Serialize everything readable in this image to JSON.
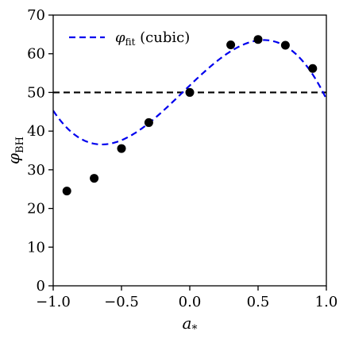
{
  "chart_data": {
    "type": "scatter",
    "xlabel": "a",
    "xlabel_subscript": "*",
    "ylabel": "φ",
    "ylabel_subscript": "BH",
    "xlim": [
      -1.0,
      1.0
    ],
    "ylim": [
      0,
      70
    ],
    "x_ticks": [
      "−1.0",
      "−0.5",
      "0.0",
      "0.5",
      "1.0"
    ],
    "x_tick_values": [
      -1.0,
      -0.5,
      0.0,
      0.5,
      1.0
    ],
    "y_ticks": [
      "0",
      "10",
      "20",
      "30",
      "40",
      "50",
      "60",
      "70"
    ],
    "y_tick_values": [
      0,
      10,
      20,
      30,
      40,
      50,
      60,
      70
    ],
    "grid": false,
    "legend": {
      "position": "upper-left",
      "entry_symbol": "φ",
      "entry_subscript": "fit",
      "entry_suffix": " (cubic)"
    },
    "series": [
      {
        "type": "scatter",
        "color": "#000000",
        "x": [
          -0.9,
          -0.7,
          -0.5,
          -0.3,
          0.0,
          0.3,
          0.5,
          0.7,
          0.9
        ],
        "y": [
          24.5,
          27.8,
          35.5,
          42.2,
          50.0,
          62.3,
          63.7,
          62.2,
          56.2
        ]
      },
      {
        "type": "line",
        "style": "dashed",
        "color": "#0000ee",
        "cubic_coefficients": [
          51.8,
          33.9,
          -5.0,
          -32.4
        ]
      },
      {
        "type": "hline",
        "style": "dashed",
        "color": "#000000",
        "y": 50
      }
    ]
  }
}
